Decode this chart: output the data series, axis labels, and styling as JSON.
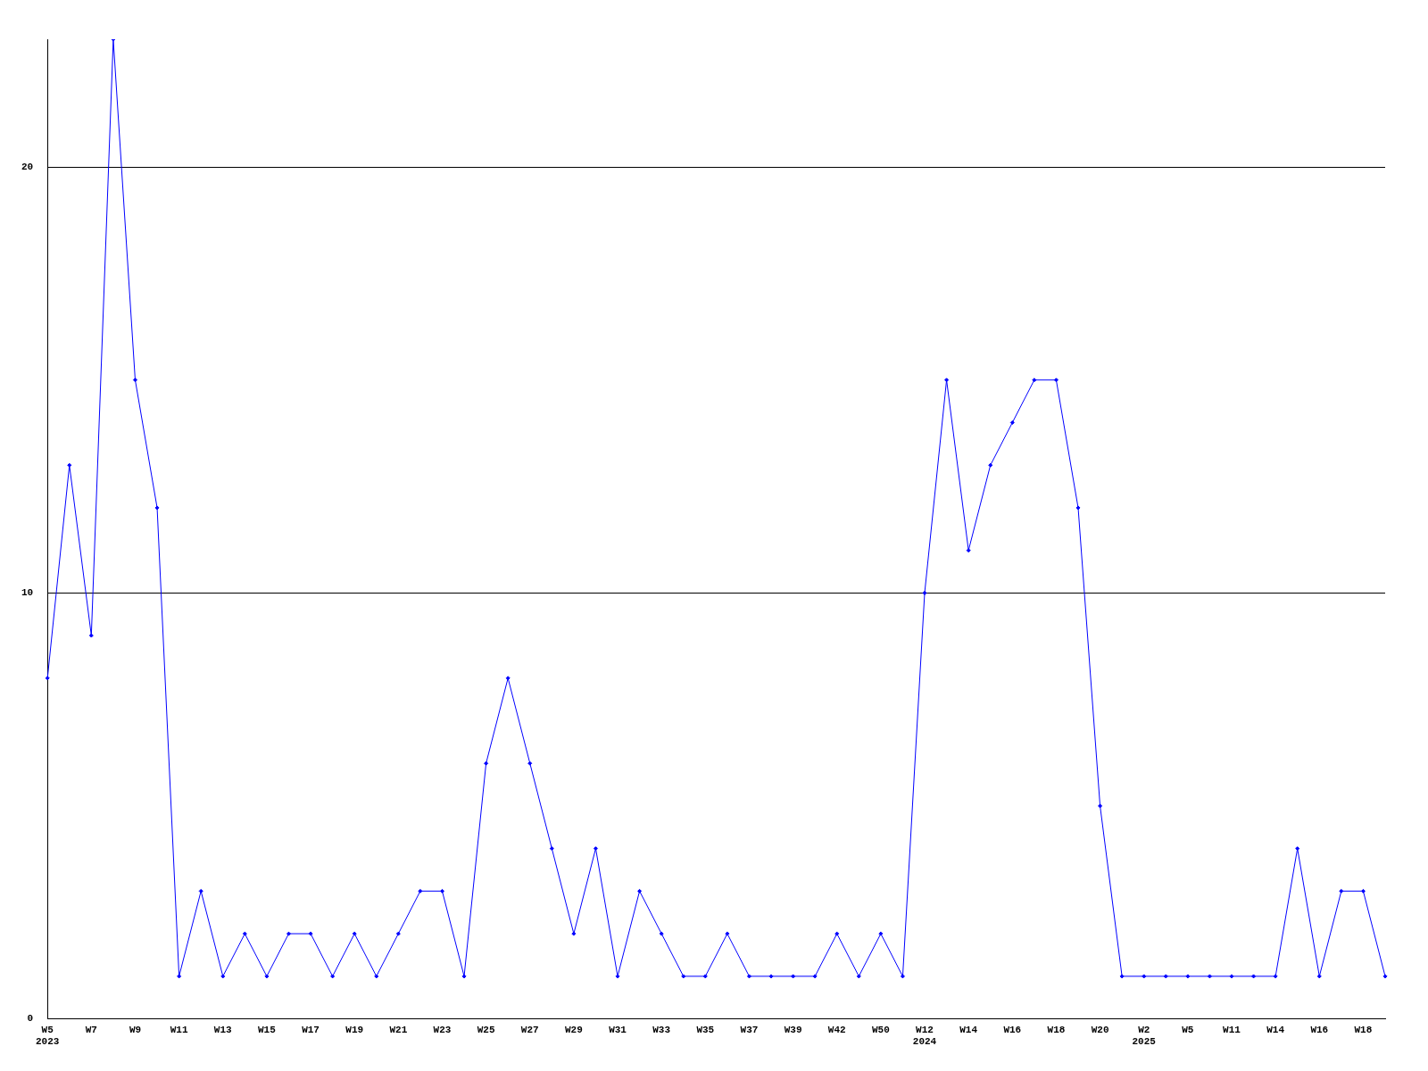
{
  "chart_data": {
    "type": "line",
    "categories": [
      "W5\n2023",
      null,
      "W7",
      null,
      "W9",
      null,
      "W11",
      null,
      "W13",
      null,
      "W15",
      null,
      "W17",
      null,
      "W19",
      null,
      "W21",
      null,
      "W23",
      null,
      "W25",
      null,
      "W27",
      null,
      "W29",
      null,
      "W31",
      null,
      "W33",
      null,
      "W35",
      null,
      "W37",
      null,
      "W39",
      null,
      "W42",
      null,
      "W50",
      null,
      "W12\n2024",
      null,
      "W14",
      null,
      "W16",
      null,
      "W18",
      null,
      "W20",
      null,
      "W2\n2025",
      null,
      "W5",
      null,
      "W11",
      null,
      "W14",
      null,
      "W16",
      null,
      "W18",
      null
    ],
    "series": [
      {
        "color": "#0000ff",
        "values": [
          8,
          13,
          9,
          23,
          15,
          12,
          1,
          3,
          1,
          2,
          1,
          2,
          2,
          1,
          2,
          1,
          2,
          3,
          3,
          1,
          6,
          8,
          6,
          4,
          2,
          4,
          1,
          3,
          2,
          1,
          1,
          2,
          1,
          1,
          1,
          1,
          2,
          1,
          2,
          1,
          10,
          15,
          11,
          13,
          14,
          15,
          15,
          12,
          5,
          1,
          1,
          1,
          1,
          1,
          1,
          1,
          1,
          4,
          1,
          3,
          3,
          1
        ]
      }
    ],
    "ylim": [
      0,
      23
    ],
    "yticks": [
      0,
      10,
      20
    ],
    "grid": "y",
    "legend": false,
    "marker": "diamond",
    "line_style": "solid"
  }
}
